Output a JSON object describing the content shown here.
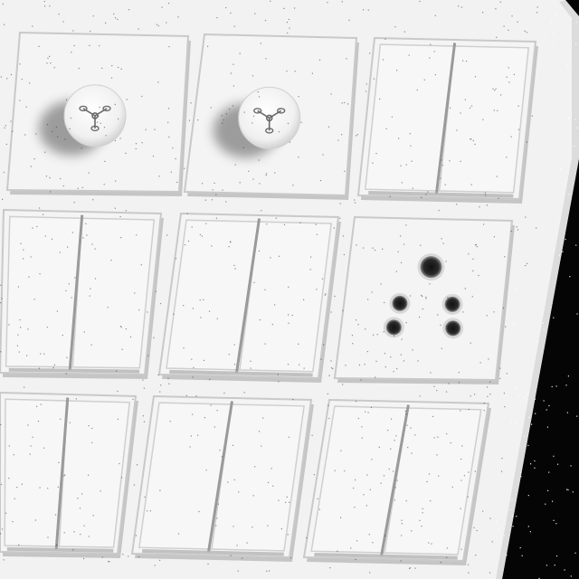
{
  "scene": {
    "subject": "switchboard",
    "background_color": "#050505",
    "panel_color": "#f2f2f2",
    "module_color": "#f4f4f4",
    "seam_color": "#c9c9c9",
    "shadow_color": "#8f8f8f",
    "hole_color": "#2a2a2a",
    "icon_color": "#6a6a6a"
  },
  "modules": [
    {
      "kind": "fan-regulator",
      "icon": "fan-icon"
    },
    {
      "kind": "fan-regulator",
      "icon": "fan-icon"
    },
    {
      "kind": "double-switch"
    },
    {
      "kind": "double-switch"
    },
    {
      "kind": "double-switch"
    },
    {
      "kind": "socket"
    },
    {
      "kind": "double-switch"
    },
    {
      "kind": "double-switch"
    },
    {
      "kind": "double-switch"
    }
  ]
}
